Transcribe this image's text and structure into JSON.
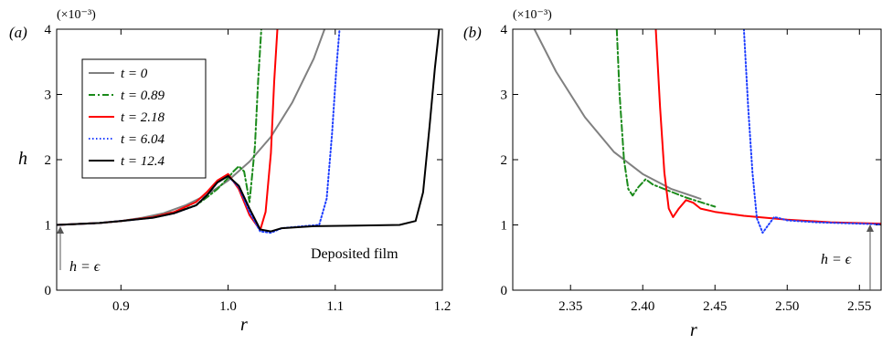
{
  "chart_data": [
    {
      "panel_label": "(a)",
      "type": "line",
      "multiplier_label": "(×10⁻³)",
      "xlabel": "r",
      "ylabel": "h",
      "xlim": [
        0.84,
        1.2
      ],
      "ylim": [
        0,
        4
      ],
      "xticks": [
        0.9,
        1.0,
        1.1,
        1.2
      ],
      "xtick_labels": [
        "0.9",
        "1.0",
        "1.1",
        "1.2"
      ],
      "yticks": [
        0,
        1,
        2,
        3,
        4
      ],
      "ytick_labels": [
        "0",
        "1",
        "2",
        "3",
        "4"
      ],
      "grid": false,
      "legend_position": "top-left",
      "annotations": {
        "epsilon_label": "h = ϵ",
        "deposited_film": "Deposited film"
      },
      "series": [
        {
          "name": "t = 0",
          "color": "#808080",
          "dash": "solid",
          "x": [
            0.84,
            0.88,
            0.9,
            0.92,
            0.94,
            0.96,
            0.98,
            1.0,
            1.02,
            1.04,
            1.06,
            1.08,
            1.09
          ],
          "y": [
            1.0,
            1.03,
            1.06,
            1.11,
            1.18,
            1.3,
            1.46,
            1.68,
            1.97,
            2.35,
            2.88,
            3.55,
            4.0
          ]
        },
        {
          "name": "t = 0.89",
          "color": "#1a8a1a",
          "dash": "dashdot",
          "x": [
            0.84,
            0.88,
            0.9,
            0.93,
            0.95,
            0.97,
            0.98,
            0.99,
            1.0,
            1.005,
            1.01,
            1.015,
            1.02,
            1.025,
            1.028,
            1.031
          ],
          "y": [
            1.0,
            1.03,
            1.06,
            1.12,
            1.2,
            1.3,
            1.42,
            1.55,
            1.72,
            1.82,
            1.9,
            1.82,
            1.35,
            2.2,
            3.2,
            4.0
          ]
        },
        {
          "name": "t = 2.18",
          "color": "#ff0000",
          "dash": "solid",
          "x": [
            0.84,
            0.88,
            0.9,
            0.93,
            0.95,
            0.97,
            0.98,
            0.99,
            1.0,
            1.01,
            1.02,
            1.03,
            1.035,
            1.04,
            1.043,
            1.046
          ],
          "y": [
            1.0,
            1.03,
            1.06,
            1.12,
            1.2,
            1.35,
            1.5,
            1.68,
            1.78,
            1.55,
            1.15,
            0.92,
            1.2,
            2.1,
            3.2,
            4.0
          ]
        },
        {
          "name": "t = 6.04",
          "color": "#1f3fff",
          "dash": "dotted",
          "x": [
            0.84,
            0.88,
            0.9,
            0.93,
            0.95,
            0.97,
            0.98,
            0.99,
            1.0,
            1.01,
            1.02,
            1.03,
            1.04,
            1.05,
            1.07,
            1.085,
            1.092,
            1.097,
            1.101,
            1.104
          ],
          "y": [
            1.0,
            1.03,
            1.06,
            1.11,
            1.18,
            1.3,
            1.45,
            1.65,
            1.75,
            1.58,
            1.2,
            0.9,
            0.88,
            0.95,
            0.98,
            1.0,
            1.4,
            2.4,
            3.4,
            4.0
          ]
        },
        {
          "name": "t = 12.4",
          "color": "#000000",
          "dash": "solid",
          "x": [
            0.84,
            0.88,
            0.9,
            0.93,
            0.95,
            0.97,
            0.98,
            0.99,
            1.0,
            1.01,
            1.02,
            1.03,
            1.04,
            1.05,
            1.08,
            1.12,
            1.16,
            1.175,
            1.182,
            1.188,
            1.193,
            1.197
          ],
          "y": [
            1.0,
            1.03,
            1.06,
            1.11,
            1.18,
            1.3,
            1.45,
            1.65,
            1.75,
            1.6,
            1.25,
            0.93,
            0.9,
            0.95,
            0.98,
            0.99,
            1.0,
            1.06,
            1.5,
            2.5,
            3.4,
            4.0
          ]
        }
      ]
    },
    {
      "panel_label": "(b)",
      "type": "line",
      "multiplier_label": "(×10⁻³)",
      "xlabel": "r",
      "ylabel": "",
      "xlim": [
        2.31,
        2.565
      ],
      "ylim": [
        0,
        4
      ],
      "xticks": [
        2.35,
        2.4,
        2.45,
        2.5,
        2.55
      ],
      "xtick_labels": [
        "2.35",
        "2.40",
        "2.45",
        "2.50",
        "2.55"
      ],
      "yticks": [
        0,
        1,
        2,
        3,
        4
      ],
      "ytick_labels": [
        "0",
        "1",
        "2",
        "3",
        "4"
      ],
      "grid": false,
      "annotations": {
        "epsilon_label": "h = ϵ"
      },
      "series": [
        {
          "name": "t = 0",
          "color": "#808080",
          "dash": "solid",
          "x": [
            2.325,
            2.34,
            2.36,
            2.38,
            2.4,
            2.42,
            2.44
          ],
          "y": [
            4.0,
            3.35,
            2.65,
            2.12,
            1.78,
            1.55,
            1.4
          ]
        },
        {
          "name": "t = 0.89",
          "color": "#1a8a1a",
          "dash": "dashdot",
          "x": [
            2.382,
            2.384,
            2.387,
            2.39,
            2.393,
            2.397,
            2.402,
            2.407,
            2.415,
            2.43,
            2.45
          ],
          "y": [
            4.0,
            3.0,
            2.0,
            1.55,
            1.45,
            1.58,
            1.7,
            1.62,
            1.55,
            1.42,
            1.28
          ]
        },
        {
          "name": "t = 2.18",
          "color": "#ff0000",
          "dash": "solid",
          "x": [
            2.409,
            2.412,
            2.415,
            2.418,
            2.421,
            2.425,
            2.43,
            2.435,
            2.44,
            2.45,
            2.47,
            2.5,
            2.53,
            2.565
          ],
          "y": [
            4.0,
            2.8,
            1.8,
            1.25,
            1.12,
            1.25,
            1.38,
            1.34,
            1.25,
            1.2,
            1.14,
            1.08,
            1.04,
            1.02
          ]
        },
        {
          "name": "t = 6.04",
          "color": "#1f3fff",
          "dash": "dotted",
          "x": [
            2.47,
            2.473,
            2.476,
            2.479,
            2.483,
            2.487,
            2.491,
            2.495,
            2.5,
            2.52,
            2.55,
            2.565
          ],
          "y": [
            4.0,
            2.8,
            1.8,
            1.1,
            0.88,
            1.0,
            1.12,
            1.1,
            1.07,
            1.04,
            1.02,
            1.01
          ]
        }
      ]
    }
  ]
}
